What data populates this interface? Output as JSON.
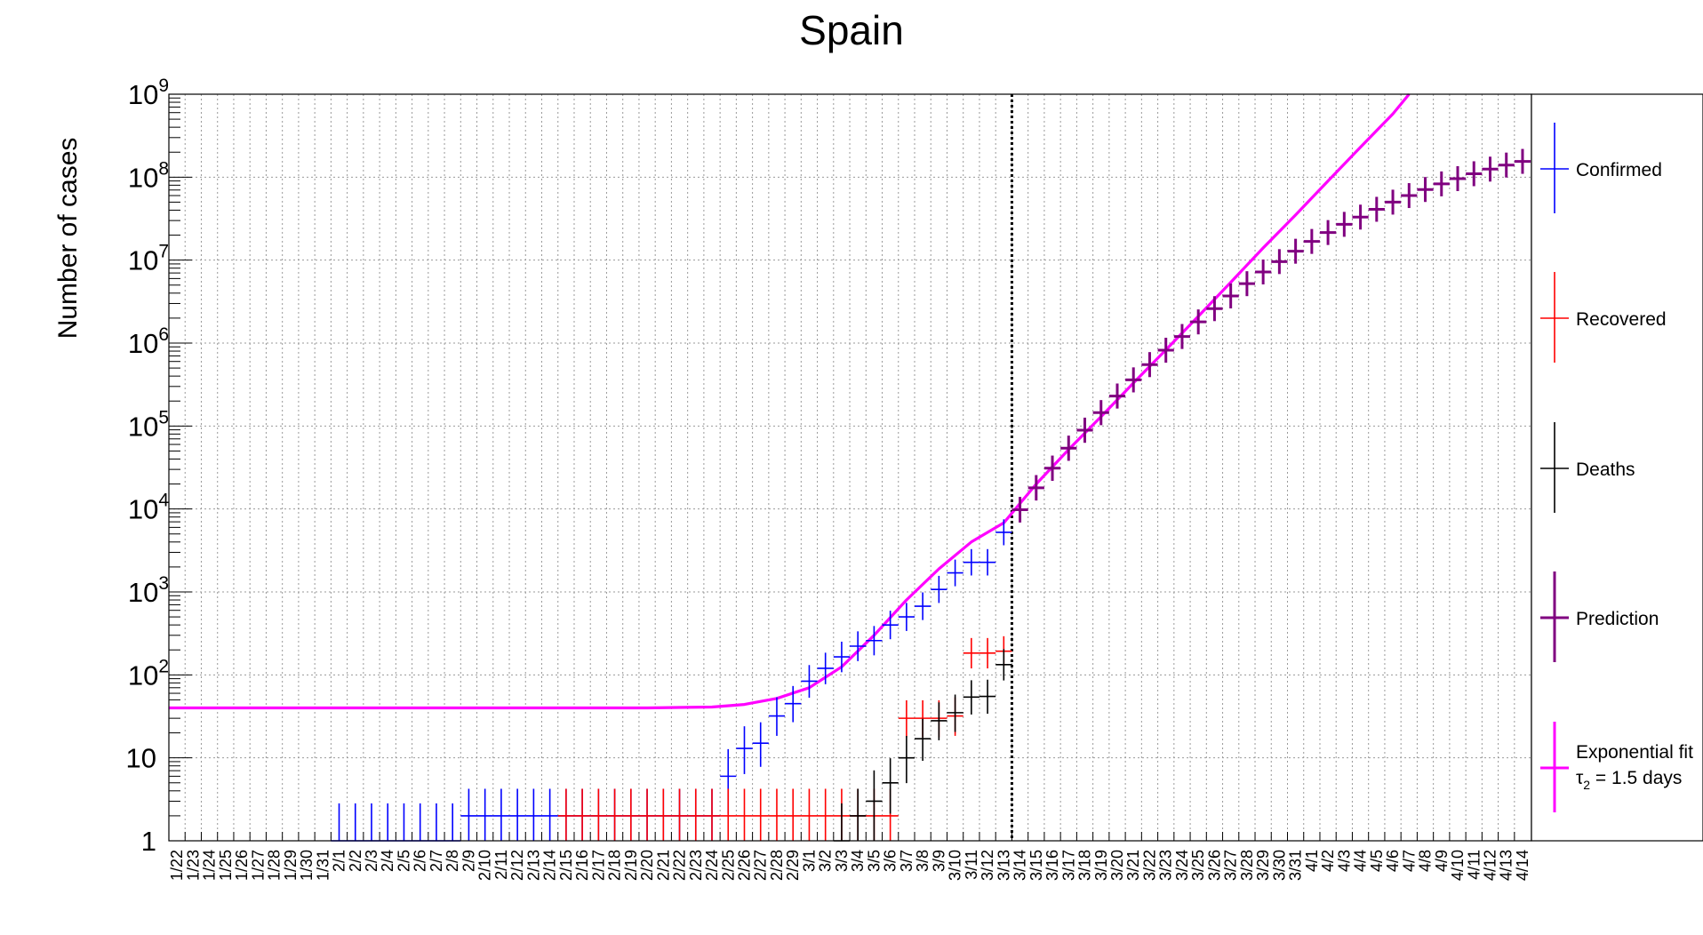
{
  "chart_data": {
    "type": "scatter",
    "title": "Spain",
    "ylabel": "Number of cases",
    "xlabel": "",
    "y_scale": "log",
    "ylim": [
      1,
      1000000000
    ],
    "grid": true,
    "legend_position": "right",
    "dates": [
      "1/22",
      "1/23",
      "1/24",
      "1/25",
      "1/26",
      "1/27",
      "1/28",
      "1/29",
      "1/30",
      "1/31",
      "2/1",
      "2/2",
      "2/3",
      "2/4",
      "2/5",
      "2/6",
      "2/7",
      "2/8",
      "2/9",
      "2/10",
      "2/11",
      "2/12",
      "2/13",
      "2/14",
      "2/15",
      "2/16",
      "2/17",
      "2/18",
      "2/19",
      "2/20",
      "2/21",
      "2/22",
      "2/23",
      "2/24",
      "2/25",
      "2/26",
      "2/27",
      "2/28",
      "2/29",
      "3/1",
      "3/2",
      "3/3",
      "3/4",
      "3/5",
      "3/6",
      "3/7",
      "3/8",
      "3/9",
      "3/10",
      "3/11",
      "3/12",
      "3/13",
      "3/14",
      "3/15",
      "3/16",
      "3/17",
      "3/18",
      "3/19",
      "3/20",
      "3/21",
      "3/22",
      "3/23",
      "3/24",
      "3/25",
      "3/26",
      "3/27",
      "3/28",
      "3/29",
      "3/30",
      "3/31",
      "4/1",
      "4/2",
      "4/3",
      "4/4",
      "4/5",
      "4/6",
      "4/7",
      "4/8",
      "4/9",
      "4/10",
      "4/11",
      "4/12",
      "4/13",
      "4/14"
    ],
    "vertical_marker_after": "3/13",
    "y_tick_labels": [
      {
        "base": "1",
        "exp": ""
      },
      {
        "base": "10",
        "exp": ""
      },
      {
        "base": "10",
        "exp": "2"
      },
      {
        "base": "10",
        "exp": "3"
      },
      {
        "base": "10",
        "exp": "4"
      },
      {
        "base": "10",
        "exp": "5"
      },
      {
        "base": "10",
        "exp": "6"
      },
      {
        "base": "10",
        "exp": "7"
      },
      {
        "base": "10",
        "exp": "8"
      },
      {
        "base": "10",
        "exp": "9"
      }
    ],
    "series": [
      {
        "name": "Confirmed",
        "color": "#0000ff",
        "points": [
          {
            "x": "2/1",
            "y": 1,
            "err": 1
          },
          {
            "x": "2/2",
            "y": 1,
            "err": 1
          },
          {
            "x": "2/3",
            "y": 1,
            "err": 1
          },
          {
            "x": "2/4",
            "y": 1,
            "err": 1
          },
          {
            "x": "2/5",
            "y": 1,
            "err": 1
          },
          {
            "x": "2/6",
            "y": 1,
            "err": 1
          },
          {
            "x": "2/7",
            "y": 1,
            "err": 1
          },
          {
            "x": "2/8",
            "y": 1,
            "err": 1
          },
          {
            "x": "2/9",
            "y": 2,
            "err": 1
          },
          {
            "x": "2/10",
            "y": 2,
            "err": 1
          },
          {
            "x": "2/11",
            "y": 2,
            "err": 1
          },
          {
            "x": "2/12",
            "y": 2,
            "err": 1
          },
          {
            "x": "2/13",
            "y": 2,
            "err": 1
          },
          {
            "x": "2/14",
            "y": 2,
            "err": 1
          },
          {
            "x": "2/15",
            "y": 2,
            "err": 1
          },
          {
            "x": "2/16",
            "y": 2,
            "err": 1
          },
          {
            "x": "2/17",
            "y": 2,
            "err": 1
          },
          {
            "x": "2/18",
            "y": 2,
            "err": 1
          },
          {
            "x": "2/19",
            "y": 2,
            "err": 1
          },
          {
            "x": "2/20",
            "y": 2,
            "err": 1
          },
          {
            "x": "2/21",
            "y": 2,
            "err": 1
          },
          {
            "x": "2/22",
            "y": 2,
            "err": 1
          },
          {
            "x": "2/23",
            "y": 2,
            "err": 1
          },
          {
            "x": "2/24",
            "y": 2,
            "err": 1
          },
          {
            "x": "2/25",
            "y": 6,
            "err": 3
          },
          {
            "x": "2/26",
            "y": 13,
            "err": 4
          },
          {
            "x": "2/27",
            "y": 15,
            "err": 4
          },
          {
            "x": "2/28",
            "y": 32,
            "err": 6
          },
          {
            "x": "2/29",
            "y": 45,
            "err": 7
          },
          {
            "x": "3/1",
            "y": 84,
            "err": 9
          },
          {
            "x": "3/2",
            "y": 120,
            "err": 11
          },
          {
            "x": "3/3",
            "y": 165,
            "err": 13
          },
          {
            "x": "3/4",
            "y": 222,
            "err": 15
          },
          {
            "x": "3/5",
            "y": 259,
            "err": 16
          },
          {
            "x": "3/6",
            "y": 400,
            "err": 20
          },
          {
            "x": "3/7",
            "y": 500,
            "err": 22
          },
          {
            "x": "3/8",
            "y": 673,
            "err": 26
          },
          {
            "x": "3/9",
            "y": 1073,
            "err": 33
          },
          {
            "x": "3/10",
            "y": 1695,
            "err": 41
          },
          {
            "x": "3/11",
            "y": 2277,
            "err": 48
          },
          {
            "x": "3/12",
            "y": 2277,
            "err": 48
          },
          {
            "x": "3/13",
            "y": 5232,
            "err": 72
          }
        ]
      },
      {
        "name": "Recovered",
        "color": "#ff0000",
        "points": [
          {
            "x": "2/15",
            "y": 2,
            "err": 1
          },
          {
            "x": "2/16",
            "y": 2,
            "err": 1
          },
          {
            "x": "2/17",
            "y": 2,
            "err": 1
          },
          {
            "x": "2/18",
            "y": 2,
            "err": 1
          },
          {
            "x": "2/19",
            "y": 2,
            "err": 1
          },
          {
            "x": "2/20",
            "y": 2,
            "err": 1
          },
          {
            "x": "2/21",
            "y": 2,
            "err": 1
          },
          {
            "x": "2/22",
            "y": 2,
            "err": 1
          },
          {
            "x": "2/23",
            "y": 2,
            "err": 1
          },
          {
            "x": "2/24",
            "y": 2,
            "err": 1
          },
          {
            "x": "2/25",
            "y": 2,
            "err": 1
          },
          {
            "x": "2/26",
            "y": 2,
            "err": 1
          },
          {
            "x": "2/27",
            "y": 2,
            "err": 1
          },
          {
            "x": "2/28",
            "y": 2,
            "err": 1
          },
          {
            "x": "2/29",
            "y": 2,
            "err": 1
          },
          {
            "x": "3/1",
            "y": 2,
            "err": 1
          },
          {
            "x": "3/2",
            "y": 2,
            "err": 1
          },
          {
            "x": "3/3",
            "y": 2,
            "err": 1
          },
          {
            "x": "3/4",
            "y": 2,
            "err": 1
          },
          {
            "x": "3/5",
            "y": 2,
            "err": 1
          },
          {
            "x": "3/6",
            "y": 2,
            "err": 1
          },
          {
            "x": "3/7",
            "y": 30,
            "err": 5
          },
          {
            "x": "3/8",
            "y": 30,
            "err": 5
          },
          {
            "x": "3/9",
            "y": 30,
            "err": 5
          },
          {
            "x": "3/10",
            "y": 32,
            "err": 6
          },
          {
            "x": "3/11",
            "y": 183,
            "err": 14
          },
          {
            "x": "3/12",
            "y": 183,
            "err": 14
          },
          {
            "x": "3/13",
            "y": 193,
            "err": 14
          }
        ]
      },
      {
        "name": "Deaths",
        "color": "#000000",
        "points": [
          {
            "x": "3/3",
            "y": 1,
            "err": 1
          },
          {
            "x": "3/4",
            "y": 2,
            "err": 1
          },
          {
            "x": "3/5",
            "y": 3,
            "err": 2
          },
          {
            "x": "3/6",
            "y": 5,
            "err": 2
          },
          {
            "x": "3/7",
            "y": 10,
            "err": 3
          },
          {
            "x": "3/8",
            "y": 17,
            "err": 4
          },
          {
            "x": "3/9",
            "y": 28,
            "err": 5
          },
          {
            "x": "3/10",
            "y": 35,
            "err": 6
          },
          {
            "x": "3/11",
            "y": 54,
            "err": 7
          },
          {
            "x": "3/12",
            "y": 55,
            "err": 7
          },
          {
            "x": "3/13",
            "y": 133,
            "err": 12
          }
        ]
      },
      {
        "name": "Prediction",
        "color": "#800080",
        "points": [
          {
            "x": "3/14",
            "y": 9800,
            "err": 100
          },
          {
            "x": "3/15",
            "y": 18000,
            "err": 134
          },
          {
            "x": "3/16",
            "y": 31000,
            "err": 176
          },
          {
            "x": "3/17",
            "y": 54000,
            "err": 232
          },
          {
            "x": "3/18",
            "y": 89000,
            "err": 298
          },
          {
            "x": "3/19",
            "y": 145000,
            "err": 381
          },
          {
            "x": "3/20",
            "y": 230000,
            "err": 480
          },
          {
            "x": "3/21",
            "y": 360000,
            "err": 600
          },
          {
            "x": "3/22",
            "y": 550000,
            "err": 742
          },
          {
            "x": "3/23",
            "y": 820000,
            "err": 906
          },
          {
            "x": "3/24",
            "y": 1200000,
            "err": 1095
          },
          {
            "x": "3/25",
            "y": 1800000,
            "err": 1342
          },
          {
            "x": "3/26",
            "y": 2600000,
            "err": 1612
          },
          {
            "x": "3/27",
            "y": 3700000,
            "err": 1924
          },
          {
            "x": "3/28",
            "y": 5200000,
            "err": 2280
          },
          {
            "x": "3/29",
            "y": 7200000,
            "err": 2683
          },
          {
            "x": "3/30",
            "y": 9600000,
            "err": 3098
          },
          {
            "x": "3/31",
            "y": 12800000,
            "err": 3578
          },
          {
            "x": "4/1",
            "y": 16800000,
            "err": 4099
          },
          {
            "x": "4/2",
            "y": 21500000,
            "err": 4637
          },
          {
            "x": "4/3",
            "y": 27000000,
            "err": 5196
          },
          {
            "x": "4/4",
            "y": 33000000,
            "err": 5745
          },
          {
            "x": "4/5",
            "y": 41000000,
            "err": 6403
          },
          {
            "x": "4/6",
            "y": 50000000,
            "err": 7071
          },
          {
            "x": "4/7",
            "y": 60000000,
            "err": 7746
          },
          {
            "x": "4/8",
            "y": 71000000,
            "err": 8426
          },
          {
            "x": "4/9",
            "y": 83000000,
            "err": 9110
          },
          {
            "x": "4/10",
            "y": 96000000,
            "err": 9798
          },
          {
            "x": "4/11",
            "y": 110000000,
            "err": 10488
          },
          {
            "x": "4/12",
            "y": 125000000,
            "err": 11180
          },
          {
            "x": "4/13",
            "y": 140000000,
            "err": 11832
          },
          {
            "x": "4/14",
            "y": 155000000,
            "err": 12450
          }
        ]
      },
      {
        "name": "Exponential fit",
        "subtitle_prefix": "τ",
        "subtitle_sub": "2",
        "subtitle_rest": " = 1.5 days",
        "color": "#ff00ff",
        "type": "line",
        "points": [
          {
            "x": "1/22",
            "y": 40
          },
          {
            "x": "2/20",
            "y": 40
          },
          {
            "x": "2/24",
            "y": 41
          },
          {
            "x": "2/26",
            "y": 44
          },
          {
            "x": "2/28",
            "y": 52
          },
          {
            "x": "3/1",
            "y": 70
          },
          {
            "x": "3/3",
            "y": 125
          },
          {
            "x": "3/5",
            "y": 300
          },
          {
            "x": "3/7",
            "y": 800
          },
          {
            "x": "3/9",
            "y": 1900
          },
          {
            "x": "3/11",
            "y": 4000
          },
          {
            "x": "3/13",
            "y": 6800
          },
          {
            "x": "3/15",
            "y": 20000
          },
          {
            "x": "3/17",
            "y": 52000
          },
          {
            "x": "3/19",
            "y": 130000
          },
          {
            "x": "3/21",
            "y": 330000
          },
          {
            "x": "3/23",
            "y": 830000
          },
          {
            "x": "3/25",
            "y": 2100000
          },
          {
            "x": "3/27",
            "y": 5400000
          },
          {
            "x": "3/29",
            "y": 14000000
          },
          {
            "x": "3/31",
            "y": 35000000
          },
          {
            "x": "4/2",
            "y": 90000000
          },
          {
            "x": "4/4",
            "y": 230000000
          },
          {
            "x": "4/6",
            "y": 580000000
          },
          {
            "x": "4/7",
            "y": 1000000000
          }
        ]
      }
    ]
  }
}
